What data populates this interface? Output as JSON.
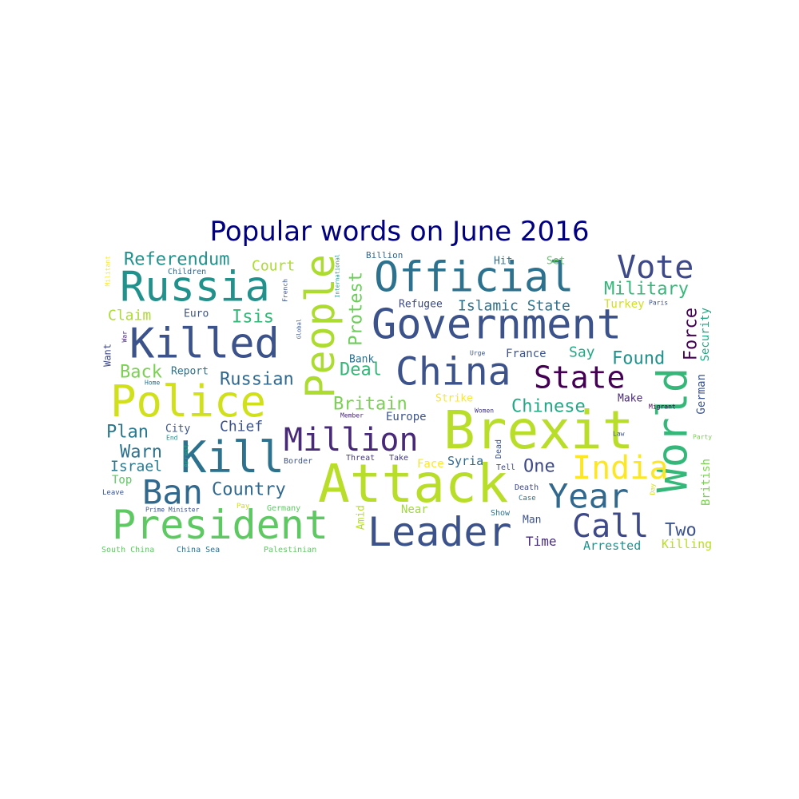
{
  "title": "Popular words on June 2016",
  "words": [
    {
      "text": "Brexit",
      "color": "#b8de29"
    },
    {
      "text": "Attack",
      "color": "#b8de29"
    },
    {
      "text": "Government",
      "color": "#3b528b"
    },
    {
      "text": "Official",
      "color": "#2c728e"
    },
    {
      "text": "China",
      "color": "#3b528b"
    },
    {
      "text": "State",
      "color": "#440154"
    },
    {
      "text": "Police",
      "color": "#d0e11c"
    },
    {
      "text": "President",
      "color": "#5ec962"
    },
    {
      "text": "Leader",
      "color": "#3b528b"
    },
    {
      "text": "Killed",
      "color": "#3b528b"
    },
    {
      "text": "Russia",
      "color": "#21918c"
    },
    {
      "text": "People",
      "color": "#addc30"
    },
    {
      "text": "World",
      "color": "#35b779"
    },
    {
      "text": "Kill",
      "color": "#2c728e"
    },
    {
      "text": "Million",
      "color": "#482878"
    },
    {
      "text": "Year",
      "color": "#31688e"
    },
    {
      "text": "Call",
      "color": "#3e4989"
    },
    {
      "text": "India",
      "color": "#fde725"
    },
    {
      "text": "Vote",
      "color": "#3e4989"
    },
    {
      "text": "Ban",
      "color": "#31688e"
    },
    {
      "text": "Referendum",
      "color": "#21918c"
    },
    {
      "text": "Protest",
      "color": "#6ccd5a"
    },
    {
      "text": "Military",
      "color": "#35b779"
    },
    {
      "text": "Country",
      "color": "#31688e"
    },
    {
      "text": "Chinese",
      "color": "#22a884"
    },
    {
      "text": "Britain",
      "color": "#7ad151"
    },
    {
      "text": "Found",
      "color": "#21918c"
    },
    {
      "text": "Force",
      "color": "#440154"
    },
    {
      "text": "Isis",
      "color": "#35b779"
    },
    {
      "text": "Court",
      "color": "#addc30"
    },
    {
      "text": "Russian",
      "color": "#31688e"
    },
    {
      "text": "Back",
      "color": "#7ad151"
    },
    {
      "text": "Deal",
      "color": "#35b779"
    },
    {
      "text": "Warn",
      "color": "#2c728e"
    },
    {
      "text": "Plan",
      "color": "#2a788e"
    },
    {
      "text": "Chief",
      "color": "#3b528b"
    },
    {
      "text": "Two",
      "color": "#3b528b"
    },
    {
      "text": "One",
      "color": "#3e4989"
    },
    {
      "text": "Say",
      "color": "#22a884"
    },
    {
      "text": "Claim",
      "color": "#addc30"
    },
    {
      "text": "Israel",
      "color": "#2a788e"
    },
    {
      "text": "Islamic State",
      "color": "#2c728e"
    },
    {
      "text": "Time",
      "color": "#472d7b"
    },
    {
      "text": "Arrested",
      "color": "#21918c"
    },
    {
      "text": "Killing",
      "color": "#b8de29"
    },
    {
      "text": "Europe",
      "color": "#3b528b"
    },
    {
      "text": "Syria",
      "color": "#31688e"
    },
    {
      "text": "Turkey",
      "color": "#d0e11c"
    },
    {
      "text": "Security",
      "color": "#22a884"
    },
    {
      "text": "German",
      "color": "#3b528b"
    },
    {
      "text": "British",
      "color": "#7ad151"
    },
    {
      "text": "Refugee",
      "color": "#3e4989"
    },
    {
      "text": "France",
      "color": "#3b528b"
    },
    {
      "text": "Top",
      "color": "#5ec962"
    },
    {
      "text": "Face",
      "color": "#fde725"
    },
    {
      "text": "Near",
      "color": "#a0da39"
    },
    {
      "text": "Man",
      "color": "#3b528b"
    },
    {
      "text": "Amid",
      "color": "#b8de29"
    },
    {
      "text": "Bank",
      "color": "#2c728e"
    },
    {
      "text": "Strike",
      "color": "#fde725"
    },
    {
      "text": "Make",
      "color": "#482878"
    },
    {
      "text": "City",
      "color": "#3b528b"
    },
    {
      "text": "Report",
      "color": "#2c728e"
    },
    {
      "text": "Euro",
      "color": "#3b528b"
    },
    {
      "text": "Want",
      "color": "#3e4989"
    },
    {
      "text": "Hit",
      "color": "#2c728e"
    },
    {
      "text": "Set",
      "color": "#5ec962"
    },
    {
      "text": "Billion",
      "color": "#31688e"
    },
    {
      "text": "Children",
      "color": "#31688e"
    },
    {
      "text": "Border",
      "color": "#3b528b"
    },
    {
      "text": "Threat",
      "color": "#443983"
    },
    {
      "text": "Take",
      "color": "#443983"
    },
    {
      "text": "Dead",
      "color": "#3b528b"
    },
    {
      "text": "Tell",
      "color": "#3e4989"
    },
    {
      "text": "Death",
      "color": "#3e4989"
    },
    {
      "text": "Case",
      "color": "#2c728e"
    },
    {
      "text": "Show",
      "color": "#2c728e"
    },
    {
      "text": "Pay",
      "color": "#d0e11c"
    },
    {
      "text": "Germany",
      "color": "#5ec962"
    },
    {
      "text": "Palestinian",
      "color": "#5ec962"
    },
    {
      "text": "South China",
      "color": "#5ec962"
    },
    {
      "text": "China Sea",
      "color": "#2c728e"
    },
    {
      "text": "Leave",
      "color": "#3b528b"
    },
    {
      "text": "Prime Minister",
      "color": "#3b528b"
    },
    {
      "text": "Arrest",
      "color": "#22a884"
    },
    {
      "text": "End",
      "color": "#21918c"
    },
    {
      "text": "Home",
      "color": "#2c728e"
    },
    {
      "text": "Member",
      "color": "#482878"
    },
    {
      "text": "Women",
      "color": "#443983"
    },
    {
      "text": "Migrant",
      "color": "#440154"
    },
    {
      "text": "Law",
      "color": "#3b528b"
    },
    {
      "text": "Party",
      "color": "#7ad151"
    },
    {
      "text": "Day",
      "color": "#d0e11c"
    },
    {
      "text": "Paris",
      "color": "#3b528b"
    },
    {
      "text": "Urge",
      "color": "#3b528b"
    },
    {
      "text": "Militant",
      "color": "#fde725"
    },
    {
      "text": "War",
      "color": "#482878"
    },
    {
      "text": "Global",
      "color": "#3b528b"
    },
    {
      "text": "French",
      "color": "#3b528b"
    },
    {
      "text": "International",
      "color": "#21918c"
    }
  ]
}
